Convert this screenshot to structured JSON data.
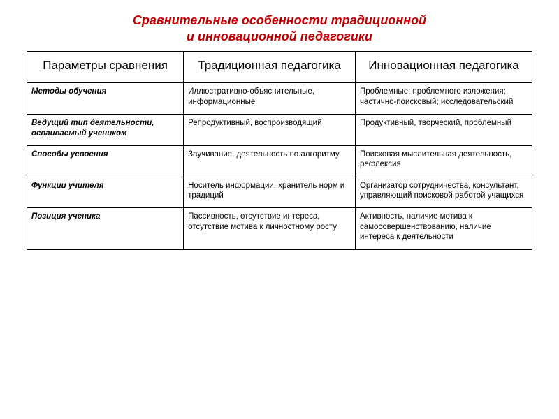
{
  "title_line1": "Сравнительные особенности традиционной",
  "title_line2": "и инновационной педагогики",
  "table": {
    "columns": [
      "Параметры сравнения",
      "Традиционная педагогика",
      "Инновационная педагогика"
    ],
    "col_widths_pct": [
      31,
      34,
      35
    ],
    "header_fontsize": 17,
    "body_fontsize": 11.5,
    "title_color": "#c00000",
    "border_color": "#000000",
    "rows": [
      {
        "param": "Методы обучения",
        "traditional": "Иллюстративно-объяснительные, информационные",
        "innovative": "Проблемные: проблемного изложения; частично-поисковый; исследовательский"
      },
      {
        "param": "Ведущий тип деятельности, осваиваемый учеником",
        "traditional": "Репродуктивный, воспроизводящий",
        "innovative": "Продуктивный, творческий, проблемный"
      },
      {
        "param": "Способы усвоения",
        "traditional": "Заучивание, деятельность по алгоритму",
        "innovative": "Поисковая мыслительная деятельность, рефлексия"
      },
      {
        "param": "Функции учителя",
        "traditional": "Носитель информации, хранитель норм и традиций",
        "innovative": "Организатор сотрудничества, консультант, управляющий поисковой работой учащихся"
      },
      {
        "param": "Позиция ученика",
        "traditional": "Пассивность, отсутствие интереса, отсутствие мотива к личностному росту",
        "innovative": "Активность, наличие мотива к самосовершенствованию, наличие интереса к деятельности"
      }
    ]
  }
}
